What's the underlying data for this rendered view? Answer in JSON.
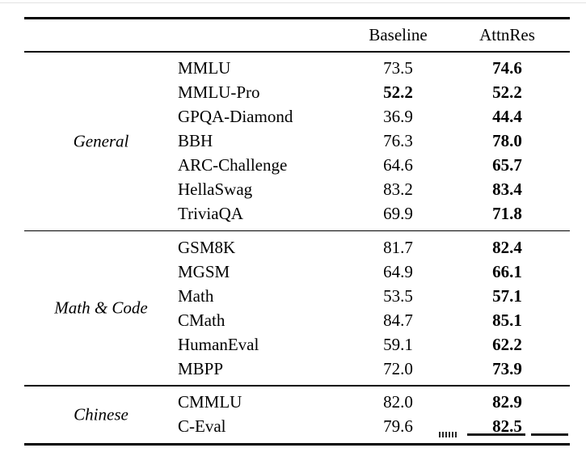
{
  "table": {
    "columns": [
      "Baseline",
      "AttnRes"
    ],
    "sections": [
      {
        "label": "General",
        "rows": [
          {
            "name": "MMLU",
            "baseline": "73.5",
            "baseline_bold": false,
            "attnres": "74.6",
            "attnres_bold": true
          },
          {
            "name": "MMLU-Pro",
            "baseline": "52.2",
            "baseline_bold": true,
            "attnres": "52.2",
            "attnres_bold": true
          },
          {
            "name": "GPQA-Diamond",
            "baseline": "36.9",
            "baseline_bold": false,
            "attnres": "44.4",
            "attnres_bold": true
          },
          {
            "name": "BBH",
            "baseline": "76.3",
            "baseline_bold": false,
            "attnres": "78.0",
            "attnres_bold": true
          },
          {
            "name": "ARC-Challenge",
            "baseline": "64.6",
            "baseline_bold": false,
            "attnres": "65.7",
            "attnres_bold": true
          },
          {
            "name": "HellaSwag",
            "baseline": "83.2",
            "baseline_bold": false,
            "attnres": "83.4",
            "attnres_bold": true
          },
          {
            "name": "TriviaQA",
            "baseline": "69.9",
            "baseline_bold": false,
            "attnres": "71.8",
            "attnres_bold": true
          }
        ]
      },
      {
        "label": "Math & Code",
        "rows": [
          {
            "name": "GSM8K",
            "baseline": "81.7",
            "baseline_bold": false,
            "attnres": "82.4",
            "attnres_bold": true
          },
          {
            "name": "MGSM",
            "baseline": "64.9",
            "baseline_bold": false,
            "attnres": "66.1",
            "attnres_bold": true
          },
          {
            "name": "Math",
            "baseline": "53.5",
            "baseline_bold": false,
            "attnres": "57.1",
            "attnres_bold": true
          },
          {
            "name": "CMath",
            "baseline": "84.7",
            "baseline_bold": false,
            "attnres": "85.1",
            "attnres_bold": true
          },
          {
            "name": "HumanEval",
            "baseline": "59.1",
            "baseline_bold": false,
            "attnres": "62.2",
            "attnres_bold": true
          },
          {
            "name": "MBPP",
            "baseline": "72.0",
            "baseline_bold": false,
            "attnres": "73.9",
            "attnres_bold": true
          }
        ]
      },
      {
        "label": "Chinese",
        "rows": [
          {
            "name": "CMMLU",
            "baseline": "82.0",
            "baseline_bold": false,
            "attnres": "82.9",
            "attnres_bold": true
          },
          {
            "name": "C-Eval",
            "baseline": "79.6",
            "baseline_bold": false,
            "attnres": "82.5",
            "attnres_bold": true
          }
        ]
      }
    ]
  },
  "colors": {
    "text": "#000000",
    "background": "#ffffff",
    "rule": "#000000"
  }
}
